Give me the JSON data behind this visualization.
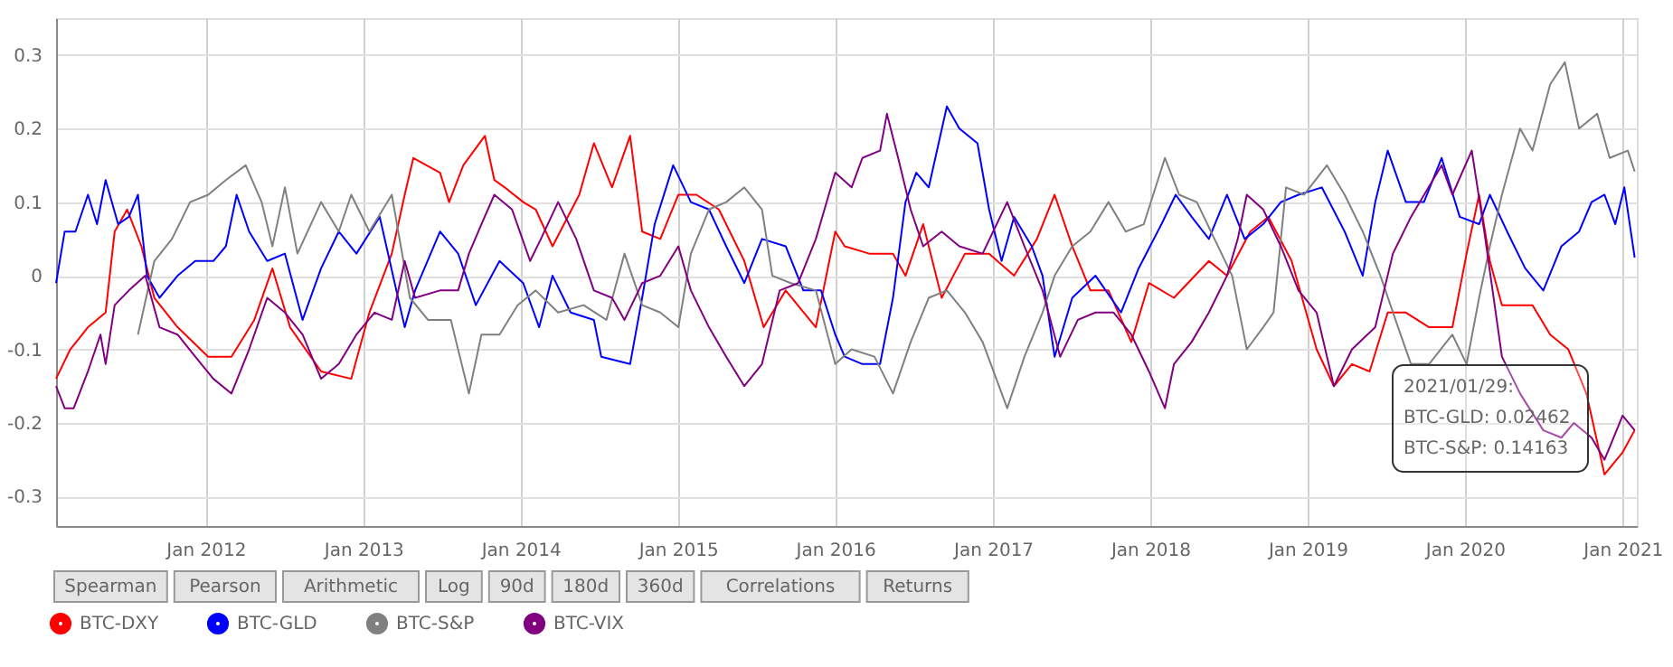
{
  "chart_data": {
    "type": "line",
    "xlim": [
      "2011-01-19",
      "2021-02-03"
    ],
    "ylim": [
      -0.34,
      0.35
    ],
    "xticks": [
      {
        "value": "2012-01-01",
        "label": "Jan 2012"
      },
      {
        "value": "2013-01-01",
        "label": "Jan 2013"
      },
      {
        "value": "2014-01-01",
        "label": "Jan 2014"
      },
      {
        "value": "2015-01-01",
        "label": "Jan 2015"
      },
      {
        "value": "2016-01-01",
        "label": "Jan 2016"
      },
      {
        "value": "2017-01-01",
        "label": "Jan 2017"
      },
      {
        "value": "2018-01-01",
        "label": "Jan 2018"
      },
      {
        "value": "2019-01-01",
        "label": "Jan 2019"
      },
      {
        "value": "2020-01-01",
        "label": "Jan 2020"
      },
      {
        "value": "2021-01-01",
        "label": "Jan 2021"
      }
    ],
    "yticks": [
      -0.3,
      -0.2,
      -0.1,
      0,
      0.1,
      0.2,
      0.3
    ],
    "grid": true,
    "legend": "bottom left",
    "series": [
      {
        "name": "BTC-DXY",
        "color": "#ff0000",
        "x": [
          "2011-01-19",
          "2011-02-21",
          "2011-04-03",
          "2011-05-14",
          "2011-06-04",
          "2011-07-03",
          "2011-08-05",
          "2011-09-04",
          "2011-10-28",
          "2012-01-07",
          "2012-03-01",
          "2012-04-23",
          "2012-06-04",
          "2012-07-15",
          "2012-09-25",
          "2012-12-04",
          "2013-01-15",
          "2013-03-08",
          "2013-04-07",
          "2013-04-27",
          "2013-06-28",
          "2013-07-19",
          "2013-08-21",
          "2013-10-10",
          "2013-11-01",
          "2013-11-25",
          "2014-01-07",
          "2014-02-05",
          "2014-03-16",
          "2014-05-17",
          "2014-06-20",
          "2014-08-01",
          "2014-09-12",
          "2014-10-10",
          "2014-11-21",
          "2015-01-02",
          "2015-02-13",
          "2015-04-06",
          "2015-06-04",
          "2015-07-19",
          "2015-09-08",
          "2015-11-17",
          "2016-01-01",
          "2016-01-23",
          "2016-03-20",
          "2016-05-14",
          "2016-06-12",
          "2016-07-23",
          "2016-09-04",
          "2016-10-28",
          "2016-12-23",
          "2017-02-19",
          "2017-04-13",
          "2017-05-24",
          "2017-07-04",
          "2017-08-15",
          "2017-09-26",
          "2017-11-18",
          "2017-12-29",
          "2018-02-25",
          "2018-05-17",
          "2018-06-28",
          "2018-08-21",
          "2018-10-02",
          "2018-11-25",
          "2019-01-22",
          "2019-03-03",
          "2019-04-14",
          "2019-05-25",
          "2019-07-06",
          "2019-08-17",
          "2019-10-10",
          "2019-12-03",
          "2020-01-05",
          "2020-02-03",
          "2020-02-28",
          "2020-03-27",
          "2020-06-06",
          "2020-07-17",
          "2020-08-28",
          "2020-10-09",
          "2020-11-20",
          "2021-01-01",
          "2021-01-29"
        ],
        "values": [
          -0.14,
          -0.1,
          -0.07,
          -0.05,
          0.06,
          0.09,
          0.04,
          -0.03,
          -0.07,
          -0.11,
          -0.11,
          -0.06,
          0.01,
          -0.07,
          -0.13,
          -0.14,
          -0.05,
          0.03,
          0.11,
          0.16,
          0.14,
          0.1,
          0.15,
          0.19,
          0.13,
          0.12,
          0.1,
          0.09,
          0.04,
          0.11,
          0.18,
          0.12,
          0.19,
          0.06,
          0.05,
          0.11,
          0.11,
          0.09,
          0.02,
          -0.07,
          -0.02,
          -0.07,
          0.06,
          0.04,
          0.03,
          0.03,
          0.0,
          0.07,
          -0.03,
          0.03,
          0.03,
          0.0,
          0.05,
          0.11,
          0.04,
          -0.02,
          -0.02,
          -0.09,
          -0.01,
          -0.03,
          0.02,
          0.0,
          0.06,
          0.08,
          0.02,
          -0.1,
          -0.15,
          -0.12,
          -0.13,
          -0.05,
          -0.05,
          -0.07,
          -0.07,
          0.03,
          0.11,
          0.02,
          -0.04,
          -0.04,
          -0.08,
          -0.1,
          -0.16,
          -0.27,
          -0.24,
          -0.21
        ]
      },
      {
        "name": "BTC-GLD",
        "color": "#0000ff",
        "x": [
          "2011-01-19",
          "2011-02-08",
          "2011-03-05",
          "2011-04-03",
          "2011-04-24",
          "2011-05-14",
          "2011-06-12",
          "2011-07-07",
          "2011-07-28",
          "2011-08-18",
          "2011-09-16",
          "2011-10-28",
          "2011-12-08",
          "2012-01-19",
          "2012-02-17",
          "2012-03-13",
          "2012-04-11",
          "2012-05-23",
          "2012-07-03",
          "2012-08-13",
          "2012-09-25",
          "2012-11-05",
          "2012-12-16",
          "2013-02-08",
          "2013-04-07",
          "2013-05-01",
          "2013-06-28",
          "2013-08-09",
          "2013-09-19",
          "2013-11-13",
          "2014-01-07",
          "2014-02-13",
          "2014-03-16",
          "2014-04-27",
          "2014-06-20",
          "2014-07-07",
          "2014-09-12",
          "2014-10-10",
          "2014-11-08",
          "2014-12-21",
          "2015-01-31",
          "2015-03-14",
          "2015-04-23",
          "2015-06-04",
          "2015-07-15",
          "2015-09-08",
          "2015-10-19",
          "2015-11-29",
          "2016-01-01",
          "2016-01-23",
          "2016-03-04",
          "2016-04-14",
          "2016-05-14",
          "2016-06-12",
          "2016-07-07",
          "2016-08-05",
          "2016-09-16",
          "2016-10-15",
          "2016-11-26",
          "2016-12-23",
          "2017-01-21",
          "2017-02-19",
          "2017-04-01",
          "2017-04-26",
          "2017-05-24",
          "2017-07-04",
          "2017-08-27",
          "2017-10-25",
          "2017-12-05",
          "2018-01-27",
          "2018-03-01",
          "2018-04-07",
          "2018-05-17",
          "2018-06-28",
          "2018-08-08",
          "2018-09-20",
          "2018-10-31",
          "2018-12-11",
          "2019-02-03",
          "2019-03-28",
          "2019-05-09",
          "2019-06-07",
          "2019-07-06",
          "2019-08-17",
          "2019-09-28",
          "2019-11-08",
          "2019-12-20",
          "2020-02-03",
          "2020-02-28",
          "2020-04-08",
          "2020-05-20",
          "2020-07-01",
          "2020-08-12",
          "2020-09-22",
          "2020-10-21",
          "2020-11-20",
          "2020-12-15",
          "2021-01-05",
          "2021-01-29"
        ],
        "values": [
          -0.01,
          0.06,
          0.06,
          0.11,
          0.07,
          0.13,
          0.07,
          0.08,
          0.11,
          0.0,
          -0.03,
          0.0,
          0.02,
          0.02,
          0.04,
          0.11,
          0.06,
          0.02,
          0.03,
          -0.06,
          0.01,
          0.06,
          0.03,
          0.08,
          -0.07,
          -0.02,
          0.06,
          0.03,
          -0.04,
          0.02,
          -0.01,
          -0.07,
          0.0,
          -0.05,
          -0.06,
          -0.11,
          -0.12,
          -0.03,
          0.07,
          0.15,
          0.1,
          0.09,
          0.04,
          -0.01,
          0.05,
          0.04,
          -0.02,
          -0.02,
          -0.08,
          -0.11,
          -0.12,
          -0.12,
          -0.03,
          0.1,
          0.14,
          0.12,
          0.23,
          0.2,
          0.18,
          0.09,
          0.02,
          0.08,
          0.04,
          0.0,
          -0.11,
          -0.03,
          0.0,
          -0.05,
          0.01,
          0.07,
          0.11,
          0.08,
          0.05,
          0.11,
          0.05,
          0.07,
          0.1,
          0.11,
          0.12,
          0.06,
          0.0,
          0.1,
          0.17,
          0.1,
          0.1,
          0.16,
          0.08,
          0.07,
          0.11,
          0.06,
          0.01,
          -0.02,
          0.04,
          0.06,
          0.1,
          0.11,
          0.07,
          0.12,
          0.02462
        ]
      },
      {
        "name": "BTC-S&P",
        "color": "#808080",
        "x": [
          "2011-07-28",
          "2011-09-04",
          "2011-10-15",
          "2011-11-26",
          "2012-01-07",
          "2012-02-17",
          "2012-04-03",
          "2012-05-10",
          "2012-06-04",
          "2012-07-03",
          "2012-08-01",
          "2012-09-25",
          "2012-11-05",
          "2012-12-04",
          "2013-01-15",
          "2013-03-08",
          "2013-04-19",
          "2013-05-31",
          "2013-07-23",
          "2013-09-03",
          "2013-10-02",
          "2013-11-13",
          "2013-12-25",
          "2014-02-05",
          "2014-03-29",
          "2014-05-27",
          "2014-07-19",
          "2014-08-30",
          "2014-10-10",
          "2014-11-21",
          "2015-01-02",
          "2015-01-31",
          "2015-03-14",
          "2015-04-23",
          "2015-06-04",
          "2015-07-15",
          "2015-08-08",
          "2015-09-20",
          "2015-11-17",
          "2016-01-01",
          "2016-02-08",
          "2016-04-01",
          "2016-05-14",
          "2016-06-24",
          "2016-08-05",
          "2016-09-16",
          "2016-10-28",
          "2016-12-08",
          "2017-02-03",
          "2017-03-15",
          "2017-04-26",
          "2017-05-24",
          "2017-07-04",
          "2017-08-15",
          "2017-09-26",
          "2017-11-05",
          "2017-12-17",
          "2018-02-04",
          "2018-03-09",
          "2018-04-19",
          "2018-05-30",
          "2018-07-10",
          "2018-08-13",
          "2018-09-20",
          "2018-10-14",
          "2018-11-12",
          "2018-12-24",
          "2019-02-15",
          "2019-03-28",
          "2019-05-09",
          "2019-06-19",
          "2019-07-30",
          "2019-08-29",
          "2019-10-10",
          "2019-12-03",
          "2020-01-05",
          "2020-02-03",
          "2020-02-28",
          "2020-03-27",
          "2020-05-08",
          "2020-06-06",
          "2020-07-17",
          "2020-08-20",
          "2020-09-22",
          "2020-11-03",
          "2020-12-02",
          "2021-01-13",
          "2021-01-29"
        ],
        "values": [
          -0.08,
          0.02,
          0.05,
          0.1,
          0.11,
          0.13,
          0.15,
          0.1,
          0.04,
          0.12,
          0.03,
          0.1,
          0.06,
          0.11,
          0.06,
          0.11,
          -0.03,
          -0.06,
          -0.06,
          -0.16,
          -0.08,
          -0.08,
          -0.04,
          -0.02,
          -0.05,
          -0.04,
          -0.06,
          0.03,
          -0.04,
          -0.05,
          -0.07,
          0.03,
          0.09,
          0.1,
          0.12,
          0.09,
          0.0,
          -0.01,
          -0.02,
          -0.12,
          -0.1,
          -0.11,
          -0.16,
          -0.09,
          -0.03,
          -0.02,
          -0.05,
          -0.09,
          -0.18,
          -0.11,
          -0.05,
          0.0,
          0.04,
          0.06,
          0.1,
          0.06,
          0.07,
          0.16,
          0.11,
          0.1,
          0.05,
          0.0,
          -0.1,
          -0.07,
          -0.05,
          0.12,
          0.11,
          0.15,
          0.11,
          0.06,
          0.0,
          -0.07,
          -0.12,
          -0.12,
          -0.08,
          -0.12,
          -0.03,
          0.04,
          0.11,
          0.2,
          0.17,
          0.26,
          0.29,
          0.2,
          0.22,
          0.16,
          0.17,
          0.14163
        ]
      },
      {
        "name": "BTC-VIX",
        "color": "#800080",
        "x": [
          "2011-01-19",
          "2011-02-08",
          "2011-03-01",
          "2011-04-03",
          "2011-05-02",
          "2011-05-14",
          "2011-06-04",
          "2011-07-07",
          "2011-08-14",
          "2011-09-16",
          "2011-10-28",
          "2011-12-08",
          "2012-01-19",
          "2012-03-01",
          "2012-04-11",
          "2012-05-23",
          "2012-07-03",
          "2012-08-13",
          "2012-09-25",
          "2012-11-05",
          "2012-12-16",
          "2013-01-27",
          "2013-03-08",
          "2013-04-07",
          "2013-05-01",
          "2013-06-28",
          "2013-08-09",
          "2013-09-03",
          "2013-10-02",
          "2013-11-01",
          "2013-12-12",
          "2014-01-23",
          "2014-02-17",
          "2014-03-29",
          "2014-05-10",
          "2014-06-20",
          "2014-08-01",
          "2014-08-30",
          "2014-10-10",
          "2014-11-21",
          "2015-01-02",
          "2015-01-31",
          "2015-03-14",
          "2015-04-23",
          "2015-06-04",
          "2015-07-15",
          "2015-08-25",
          "2015-10-07",
          "2015-11-17",
          "2016-01-01",
          "2016-02-08",
          "2016-03-04",
          "2016-04-14",
          "2016-04-30",
          "2016-05-26",
          "2016-06-24",
          "2016-07-23",
          "2016-09-04",
          "2016-10-15",
          "2016-12-08",
          "2017-02-03",
          "2017-03-15",
          "2017-04-26",
          "2017-06-06",
          "2017-07-17",
          "2017-08-27",
          "2017-10-08",
          "2017-11-18",
          "2017-12-29",
          "2018-02-04",
          "2018-02-25",
          "2018-04-07",
          "2018-05-17",
          "2018-06-28",
          "2018-07-23",
          "2018-08-13",
          "2018-09-20",
          "2018-10-31",
          "2018-12-11",
          "2019-01-22",
          "2019-03-03",
          "2019-04-14",
          "2019-06-07",
          "2019-07-18",
          "2019-08-29",
          "2019-11-08",
          "2019-12-03",
          "2020-01-17",
          "2020-02-15",
          "2020-03-27",
          "2020-05-08",
          "2020-07-01",
          "2020-08-12",
          "2020-09-10",
          "2020-10-21",
          "2020-11-20",
          "2021-01-01",
          "2021-01-29"
        ],
        "values": [
          -0.15,
          -0.18,
          -0.18,
          -0.13,
          -0.08,
          -0.12,
          -0.04,
          -0.02,
          0.0,
          -0.07,
          -0.08,
          -0.11,
          -0.14,
          -0.16,
          -0.1,
          -0.03,
          -0.05,
          -0.08,
          -0.14,
          -0.12,
          -0.08,
          -0.05,
          -0.06,
          0.02,
          -0.03,
          -0.02,
          -0.02,
          0.03,
          0.07,
          0.11,
          0.09,
          0.02,
          0.05,
          0.1,
          0.05,
          -0.02,
          -0.03,
          -0.06,
          -0.01,
          0.0,
          0.04,
          -0.02,
          -0.07,
          -0.11,
          -0.15,
          -0.12,
          -0.02,
          -0.01,
          0.05,
          0.14,
          0.12,
          0.16,
          0.17,
          0.22,
          0.16,
          0.09,
          0.04,
          0.06,
          0.04,
          0.03,
          0.1,
          0.04,
          -0.02,
          -0.11,
          -0.06,
          -0.05,
          -0.05,
          -0.08,
          -0.13,
          -0.18,
          -0.12,
          -0.09,
          -0.05,
          0.0,
          0.05,
          0.11,
          0.09,
          0.04,
          -0.02,
          -0.05,
          -0.15,
          -0.1,
          -0.07,
          0.03,
          0.08,
          0.15,
          0.11,
          0.17,
          0.06,
          -0.11,
          -0.16,
          -0.21,
          -0.22,
          -0.2,
          -0.22,
          -0.25,
          -0.19,
          -0.21
        ]
      }
    ],
    "annotations": [
      "Spearman",
      "Pearson",
      "Arithmetic",
      "Log",
      "90d",
      "180d",
      "360d",
      "Correlations",
      "Returns",
      {
        "text": "2021/01/29:"
      },
      {
        "text": "BTC-GLD: 0.02462"
      },
      {
        "text": "BTC-S&P: 0.14163"
      }
    ]
  }
}
